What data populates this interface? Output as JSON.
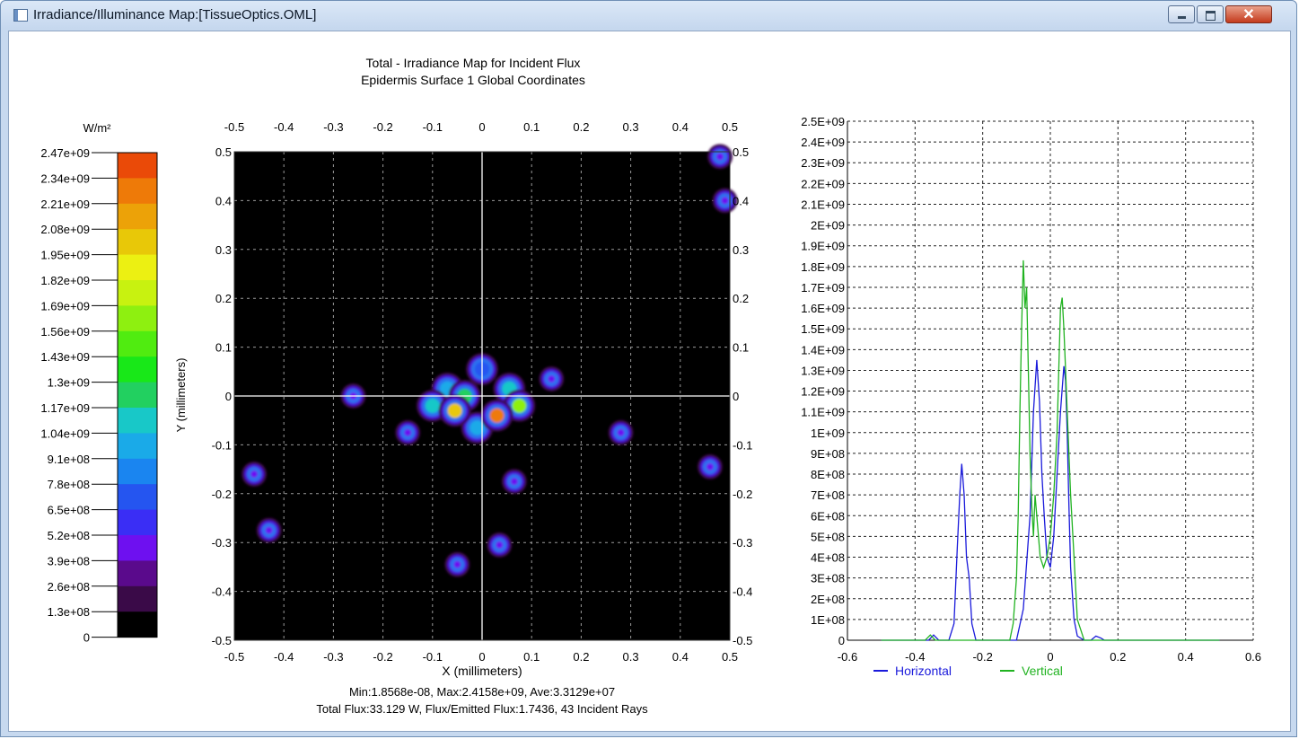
{
  "window": {
    "title": "Irradiance/Illuminance Map:[TissueOptics.OML]",
    "icons": {
      "app": "app-window-icon",
      "minimize": "minimize-icon",
      "maximize": "maximize-icon",
      "close": "close-icon"
    },
    "close_glyph": "✕"
  },
  "colors": {
    "map_background": "#000000",
    "horizontal": "#1a1adb",
    "vertical": "#21b321",
    "crosshair": "#ffffff",
    "colorbar": [
      "#000000",
      "#3a0a48",
      "#5a0a8c",
      "#6e10f0",
      "#3a2ef5",
      "#2555f0",
      "#1a85f0",
      "#1aaae8",
      "#18c8c8",
      "#22d060",
      "#18e818",
      "#50ec10",
      "#8ef010",
      "#c8f210",
      "#ecf012",
      "#e8c808",
      "#eca208",
      "#ee7a08",
      "#ea4a08"
    ]
  },
  "chart_data": [
    {
      "type": "heatmap",
      "title": "Total - Irradiance Map for Incident Flux",
      "subtitle": "Epidermis Surface 1    Global Coordinates",
      "xlabel": "X (millimeters)",
      "ylabel": "Y (millimeters)",
      "xlim": [
        -0.5,
        0.5
      ],
      "ylim": [
        -0.5,
        0.5
      ],
      "x_ticks": [
        "-0.5",
        "-0.4",
        "-0.3",
        "-0.2",
        "-0.1",
        "0",
        "0.1",
        "0.2",
        "0.3",
        "0.4",
        "0.5"
      ],
      "y_ticks": [
        "0.5",
        "0.4",
        "0.3",
        "0.2",
        "0.1",
        "0",
        "-0.1",
        "-0.2",
        "-0.3",
        "-0.4",
        "-0.5"
      ],
      "tick_values": [
        -0.5,
        -0.4,
        -0.3,
        -0.2,
        -0.1,
        0,
        0.1,
        0.2,
        0.3,
        0.4,
        0.5
      ],
      "grid": true,
      "colorbar": {
        "unit": "W/m²",
        "labels": [
          "2.47e+09",
          "2.34e+09",
          "2.21e+09",
          "2.08e+09",
          "1.95e+09",
          "1.82e+09",
          "1.69e+09",
          "1.56e+09",
          "1.43e+09",
          "1.3e+09",
          "1.17e+09",
          "1.04e+09",
          "9.1e+08",
          "7.8e+08",
          "6.5e+08",
          "5.2e+08",
          "3.9e+08",
          "2.6e+08",
          "1.3e+08",
          "0"
        ]
      },
      "spots": [
        {
          "x": 0.48,
          "y": 0.49,
          "value": 450000000.0
        },
        {
          "x": 0.49,
          "y": 0.4,
          "value": 450000000.0
        },
        {
          "x": -0.26,
          "y": 0.0,
          "value": 380000000.0
        },
        {
          "x": 0.14,
          "y": 0.035,
          "value": 420000000.0
        },
        {
          "x": -0.15,
          "y": -0.075,
          "value": 420000000.0
        },
        {
          "x": 0.28,
          "y": -0.075,
          "value": 420000000.0
        },
        {
          "x": -0.46,
          "y": -0.16,
          "value": 420000000.0
        },
        {
          "x": 0.46,
          "y": -0.145,
          "value": 420000000.0
        },
        {
          "x": 0.065,
          "y": -0.175,
          "value": 420000000.0
        },
        {
          "x": -0.43,
          "y": -0.275,
          "value": 420000000.0
        },
        {
          "x": 0.035,
          "y": -0.305,
          "value": 420000000.0
        },
        {
          "x": -0.05,
          "y": -0.345,
          "value": 420000000.0
        },
        {
          "x": 0.0,
          "y": 0.055,
          "value": 700000000.0
        },
        {
          "x": -0.07,
          "y": 0.015,
          "value": 1000000000.0
        },
        {
          "x": 0.055,
          "y": 0.015,
          "value": 1100000000.0
        },
        {
          "x": -0.055,
          "y": -0.03,
          "value": 2000000000.0
        },
        {
          "x": 0.03,
          "y": -0.04,
          "value": 2300000000.0
        },
        {
          "x": 0.075,
          "y": -0.02,
          "value": 1600000000.0
        },
        {
          "x": -0.01,
          "y": -0.065,
          "value": 1000000000.0
        },
        {
          "x": -0.1,
          "y": -0.02,
          "value": 1100000000.0
        },
        {
          "x": -0.035,
          "y": 0.0,
          "value": 1300000000.0
        }
      ],
      "stats": {
        "line1": "Min:1.8568e-08, Max:2.4158e+09, Ave:3.3129e+07",
        "line2": "Total Flux:33.129 W, Flux/Emitted Flux:1.7436, 43 Incident Rays"
      }
    },
    {
      "type": "line",
      "xlim": [
        -0.6,
        0.6
      ],
      "ylim": [
        0,
        2500000000
      ],
      "x_ticks": [
        "-0.6",
        "-0.4",
        "-0.2",
        "0",
        "0.2",
        "0.4",
        "0.6"
      ],
      "x_tick_values": [
        -0.6,
        -0.4,
        -0.2,
        0,
        0.2,
        0.4,
        0.6
      ],
      "y_ticks": [
        "2.5E+09",
        "2.4E+09",
        "2.3E+09",
        "2.2E+09",
        "2.1E+09",
        "2E+09",
        "1.9E+09",
        "1.8E+09",
        "1.7E+09",
        "1.6E+09",
        "1.5E+09",
        "1.4E+09",
        "1.3E+09",
        "1.2E+09",
        "1.1E+09",
        "1E+09",
        "9E+08",
        "8E+08",
        "7E+08",
        "6E+08",
        "5E+08",
        "4E+08",
        "3E+08",
        "2E+08",
        "1E+08",
        "0"
      ],
      "y_tick_values": [
        2500000000,
        2400000000,
        2300000000,
        2200000000,
        2100000000,
        2000000000,
        1900000000,
        1800000000,
        1700000000,
        1600000000,
        1500000000,
        1400000000,
        1300000000,
        1200000000,
        1100000000,
        1000000000,
        900000000,
        800000000,
        700000000,
        600000000,
        500000000,
        400000000,
        300000000,
        200000000,
        100000000,
        0
      ],
      "grid": true,
      "legend_position": "bottom",
      "series": [
        {
          "name": "Horizontal",
          "color": "#1a1adb",
          "x": [
            -0.5,
            -0.36,
            -0.345,
            -0.33,
            -0.3,
            -0.285,
            -0.275,
            -0.268,
            -0.262,
            -0.255,
            -0.248,
            -0.24,
            -0.232,
            -0.22,
            -0.2,
            -0.1,
            -0.08,
            -0.06,
            -0.05,
            -0.04,
            -0.032,
            -0.025,
            -0.018,
            -0.01,
            0.0,
            0.01,
            0.02,
            0.03,
            0.04,
            0.045,
            0.05,
            0.055,
            0.06,
            0.07,
            0.08,
            0.1,
            0.12,
            0.135,
            0.15,
            0.16,
            0.2,
            0.5
          ],
          "y": [
            0,
            0,
            25000000,
            0,
            0,
            80000000,
            450000000,
            700000000,
            850000000,
            700000000,
            400000000,
            300000000,
            80000000,
            0,
            0,
            0,
            150000000,
            600000000,
            1100000000,
            1350000000,
            1150000000,
            800000000,
            600000000,
            400000000,
            350000000,
            500000000,
            800000000,
            1100000000,
            1320000000,
            1250000000,
            1000000000,
            650000000,
            350000000,
            100000000,
            20000000,
            0,
            0,
            20000000,
            10000000,
            0,
            0,
            0
          ]
        },
        {
          "name": "Vertical",
          "color": "#21b321",
          "x": [
            -0.5,
            -0.37,
            -0.355,
            -0.34,
            -0.3,
            -0.12,
            -0.11,
            -0.1,
            -0.095,
            -0.09,
            -0.085,
            -0.08,
            -0.075,
            -0.07,
            -0.065,
            -0.06,
            -0.055,
            -0.05,
            -0.045,
            -0.04,
            -0.035,
            -0.03,
            -0.02,
            -0.01,
            0.0,
            0.01,
            0.02,
            0.025,
            0.03,
            0.035,
            0.04,
            0.045,
            0.05,
            0.055,
            0.06,
            0.07,
            0.08,
            0.1,
            0.5
          ],
          "y": [
            0,
            0,
            25000000,
            0,
            0,
            0,
            80000000,
            300000000,
            600000000,
            1100000000,
            1500000000,
            1830000000,
            1600000000,
            1700000000,
            1300000000,
            900000000,
            650000000,
            500000000,
            700000000,
            600000000,
            500000000,
            400000000,
            350000000,
            400000000,
            500000000,
            700000000,
            1000000000,
            1300000000,
            1600000000,
            1650000000,
            1500000000,
            1300000000,
            1100000000,
            900000000,
            700000000,
            400000000,
            100000000,
            0,
            0
          ]
        }
      ]
    }
  ]
}
